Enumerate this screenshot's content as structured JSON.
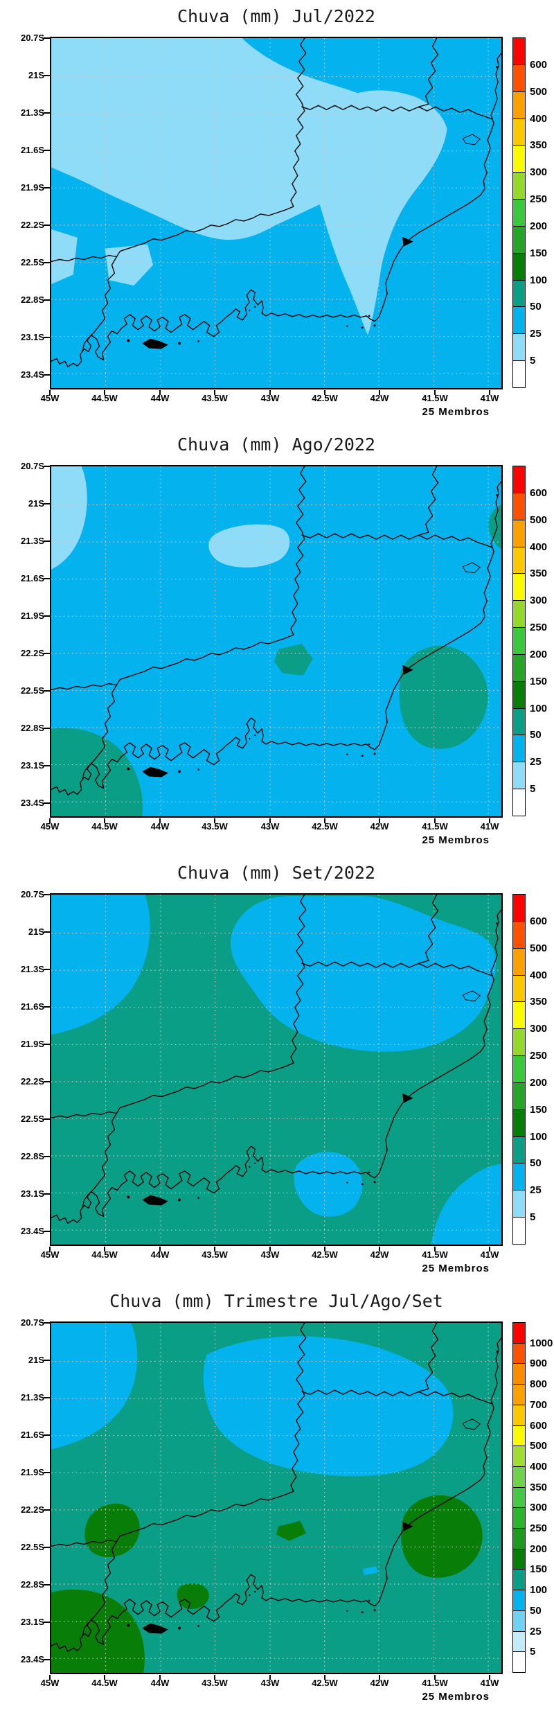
{
  "figure": {
    "background": "#ffffff",
    "description": "Quatro mapas de previsao de chuva (mm) sobre o estado do Rio de Janeiro"
  },
  "axes": {
    "lat_labels": [
      "20.7S",
      "21S",
      "21.3S",
      "21.6S",
      "21.9S",
      "22.2S",
      "22.5S",
      "22.8S",
      "23.1S",
      "23.4S"
    ],
    "lon_labels": [
      "45W",
      "44.5W",
      "44W",
      "43.5W",
      "43W",
      "42.5W",
      "42W",
      "41.5W",
      "41W"
    ]
  },
  "palette13": [
    "#ffffff",
    "#8fdcf8",
    "#04b2ee",
    "#0a9e86",
    "#087d08",
    "#28a428",
    "#3cc83c",
    "#96d72c",
    "#fafa00",
    "#fac800",
    "#faa000",
    "#fa5200",
    "#fa0400"
  ],
  "palette17": [
    "#ffffff",
    "#c3ebfb",
    "#6fd2f5",
    "#04b2ee",
    "#0a9e86",
    "#087d08",
    "#1e9a1e",
    "#2cb42c",
    "#46c846",
    "#6ed24b",
    "#a0dc32",
    "#fafa00",
    "#fac800",
    "#faa000",
    "#fa8c00",
    "#fa5200",
    "#fa0400"
  ],
  "panels": [
    {
      "id": "jul-2022",
      "title": "Chuva (mm) Jul/2022",
      "members": "25 Membros",
      "colorbar": {
        "palette": "palette13",
        "segments": 13,
        "boundary_labels_bottom_to_top": [
          "5",
          "25",
          "50",
          "100",
          "150",
          "200",
          "250",
          "300",
          "350",
          "400",
          "500",
          "600"
        ]
      },
      "fill_summary": "5-25 mm sobre norte e centro; 25-50 mm sobre sul, oeste e nordeste"
    },
    {
      "id": "ago-2022",
      "title": "Chuva (mm) Ago/2022",
      "members": "25 Membros",
      "colorbar": {
        "palette": "palette13",
        "segments": 13,
        "boundary_labels_bottom_to_top": [
          "5",
          "25",
          "50",
          "100",
          "150",
          "200",
          "250",
          "300",
          "350",
          "400",
          "500",
          "600"
        ]
      },
      "fill_summary": "25-50 mm predominante; 5-25 mm a noroeste e centro-norte; 50-100 mm a sudoeste, centro e leste"
    },
    {
      "id": "set-2022",
      "title": "Chuva (mm) Set/2022",
      "members": "25 Membros",
      "colorbar": {
        "palette": "palette13",
        "segments": 13,
        "boundary_labels_bottom_to_top": [
          "5",
          "25",
          "50",
          "100",
          "150",
          "200",
          "250",
          "300",
          "350",
          "400",
          "500",
          "600"
        ]
      },
      "fill_summary": "50-100 mm predominante; 25-50 mm a noroeste, centro-norte, centro-sul e sudeste"
    },
    {
      "id": "trimestre-jul-ago-set",
      "title": "Chuva (mm) Trimestre Jul/Ago/Set",
      "members": "25 Membros",
      "colorbar": {
        "palette": "palette17",
        "segments": 17,
        "boundary_labels_bottom_to_top": [
          "5",
          "25",
          "50",
          "100",
          "150",
          "200",
          "250",
          "300",
          "350",
          "400",
          "500",
          "600",
          "700",
          "800",
          "900",
          "1000"
        ]
      },
      "fill_summary": "100-150 mm predominante; 50-100 mm a noroeste e centro-norte; 150-200 mm a oeste, leste e sudoeste"
    }
  ]
}
